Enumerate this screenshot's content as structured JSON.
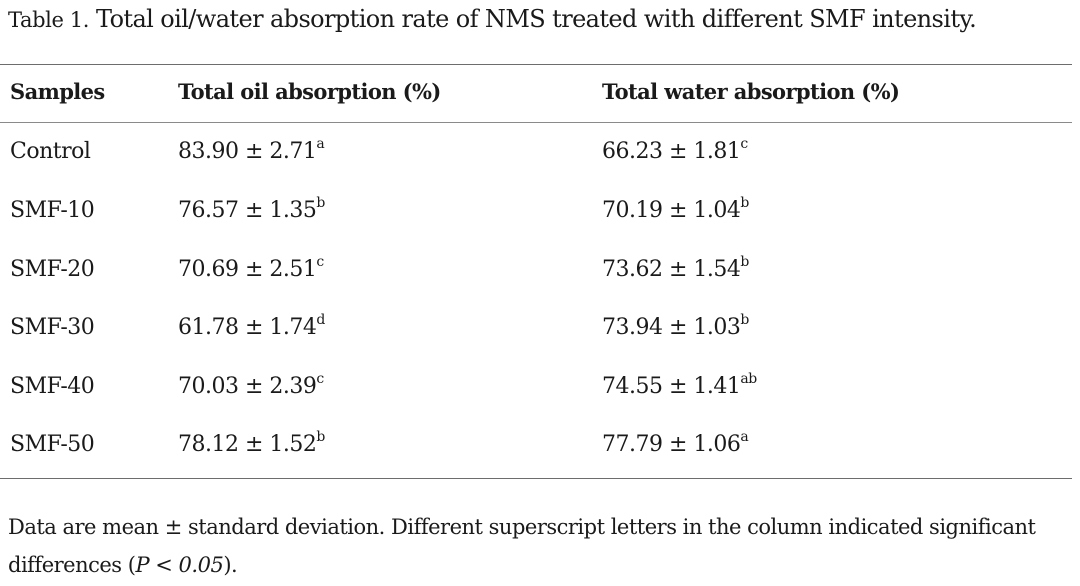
{
  "caption": {
    "label": "Table 1.",
    "text": "Total oil/water absorption rate of NMS treated with different SMF intensity."
  },
  "table": {
    "headers": [
      "Samples",
      "Total oil absorption (%)",
      "Total water absorption (%)"
    ],
    "rows": [
      {
        "sample": "Control",
        "oil": "83.90 ± 2.71",
        "oil_sup": "a",
        "water": "66.23 ± 1.81",
        "water_sup": "c"
      },
      {
        "sample": "SMF-10",
        "oil": "76.57 ± 1.35",
        "oil_sup": "b",
        "water": "70.19 ± 1.04",
        "water_sup": "b"
      },
      {
        "sample": "SMF-20",
        "oil": "70.69 ± 2.51",
        "oil_sup": "c",
        "water": "73.62 ± 1.54",
        "water_sup": "b"
      },
      {
        "sample": "SMF-30",
        "oil": "61.78 ± 1.74",
        "oil_sup": "d",
        "water": "73.94 ± 1.03",
        "water_sup": "b"
      },
      {
        "sample": "SMF-40",
        "oil": "70.03 ± 2.39",
        "oil_sup": "c",
        "water": "74.55 ± 1.41",
        "water_sup": "ab"
      },
      {
        "sample": "SMF-50",
        "oil": "78.12 ± 1.52",
        "oil_sup": "b",
        "water": "77.79 ± 1.06",
        "water_sup": "a"
      }
    ]
  },
  "footnote": {
    "text_before": "Data are mean ± standard deviation. Different superscript letters in the column indicated significant differences (",
    "p_value": "P < 0.05",
    "text_after": ")."
  }
}
